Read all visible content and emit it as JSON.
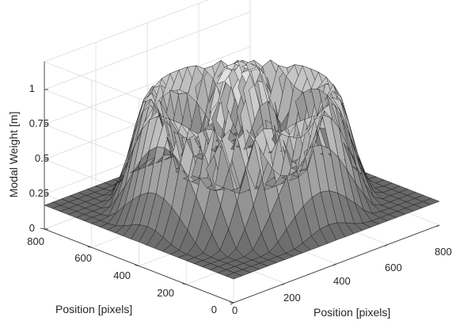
{
  "chart_data": {
    "type": "surface",
    "title": "",
    "zlabel": "Modal Weight [m]",
    "xlabel": "Position [pixels]",
    "ylabel": "Position [pixels]",
    "xlim": [
      0,
      800
    ],
    "ylim": [
      0,
      800
    ],
    "zlim": [
      0,
      1.2
    ],
    "xticks": [
      0,
      200,
      400,
      600,
      800
    ],
    "yticks": [
      0,
      200,
      400,
      600,
      800
    ],
    "zticks": [
      0,
      0.25,
      0.5,
      0.75,
      1
    ],
    "zticklabels": [
      "0",
      "0.25",
      "0.5",
      "0.75",
      "1"
    ],
    "grid": true,
    "colormap": "gray",
    "surface": {
      "center": [
        400,
        400
      ],
      "peak_height": 1.0,
      "peak_radius": 125,
      "ring_height": 0.78,
      "ring_radius": 265,
      "plateau_height": 0.25,
      "outer_radius": 360,
      "grid_resolution": 24
    }
  }
}
